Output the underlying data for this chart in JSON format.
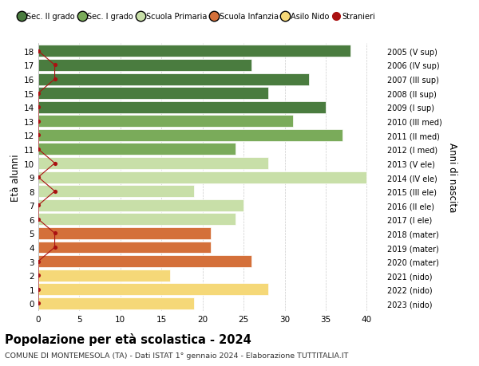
{
  "ages": [
    18,
    17,
    16,
    15,
    14,
    13,
    12,
    11,
    10,
    9,
    8,
    7,
    6,
    5,
    4,
    3,
    2,
    1,
    0
  ],
  "years_labels": [
    "2005 (V sup)",
    "2006 (IV sup)",
    "2007 (III sup)",
    "2008 (II sup)",
    "2009 (I sup)",
    "2010 (III med)",
    "2011 (II med)",
    "2012 (I med)",
    "2013 (V ele)",
    "2014 (IV ele)",
    "2015 (III ele)",
    "2016 (II ele)",
    "2017 (I ele)",
    "2018 (mater)",
    "2019 (mater)",
    "2020 (mater)",
    "2021 (nido)",
    "2022 (nido)",
    "2023 (nido)"
  ],
  "bar_values": [
    38,
    26,
    33,
    28,
    35,
    31,
    37,
    24,
    28,
    40,
    19,
    25,
    24,
    21,
    21,
    26,
    16,
    28,
    19
  ],
  "bar_colors": [
    "#4a7c3f",
    "#4a7c3f",
    "#4a7c3f",
    "#4a7c3f",
    "#4a7c3f",
    "#7aab5a",
    "#7aab5a",
    "#7aab5a",
    "#c8dfa8",
    "#c8dfa8",
    "#c8dfa8",
    "#c8dfa8",
    "#c8dfa8",
    "#d4703a",
    "#d4703a",
    "#d4703a",
    "#f5d878",
    "#f5d878",
    "#f5d878"
  ],
  "stranieri_values": [
    0,
    2,
    2,
    0,
    0,
    0,
    0,
    0,
    2,
    0,
    2,
    0,
    0,
    2,
    2,
    0,
    0,
    0,
    0
  ],
  "stranieri_color": "#aa1111",
  "legend_labels": [
    "Sec. II grado",
    "Sec. I grado",
    "Scuola Primaria",
    "Scuola Infanzia",
    "Asilo Nido",
    "Stranieri"
  ],
  "legend_colors": [
    "#4a7c3f",
    "#7aab5a",
    "#c8dfa8",
    "#d4703a",
    "#f5d878",
    "#aa1111"
  ],
  "ylabel": "Età alunni",
  "ylabel_right": "Anni di nascita",
  "title": "Popolazione per età scolastica - 2024",
  "subtitle": "COMUNE DI MONTEMESOLA (TA) - Dati ISTAT 1° gennaio 2024 - Elaborazione TUTTITALIA.IT",
  "xlim": [
    0,
    42
  ],
  "xticks": [
    0,
    5,
    10,
    15,
    20,
    25,
    30,
    35,
    40
  ],
  "bar_height": 0.85,
  "background_color": "#ffffff",
  "grid_color": "#cccccc"
}
